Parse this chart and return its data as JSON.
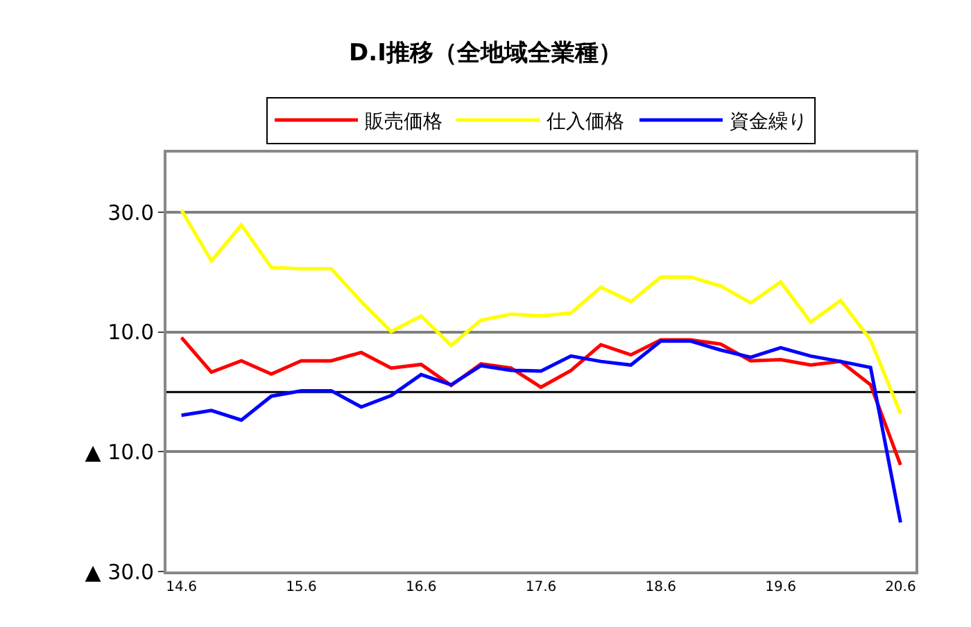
{
  "chart_data": {
    "type": "line",
    "title": "D.I推移（全地域全業種）",
    "categories": [
      "14.6",
      null,
      null,
      null,
      "15.6",
      null,
      null,
      null,
      "16.6",
      null,
      null,
      null,
      "17.6",
      null,
      null,
      null,
      "18.6",
      null,
      null,
      null,
      "19.6",
      null,
      null,
      null,
      "20.6"
    ],
    "series": [
      {
        "name": "販売価格",
        "color": "#ff0000",
        "values": [
          9.1,
          3.3,
          5.2,
          3.0,
          5.2,
          5.2,
          6.6,
          4.0,
          4.6,
          1.1,
          4.7,
          4.0,
          0.8,
          3.6,
          7.9,
          6.2,
          8.7,
          8.7,
          8.0,
          5.2,
          5.4,
          4.5,
          5.1,
          1.2,
          -12.2
        ]
      },
      {
        "name": "仕入価格",
        "color": "#ffff00",
        "values": [
          30.4,
          21.9,
          27.9,
          20.8,
          20.6,
          20.6,
          15.1,
          10.1,
          12.7,
          7.8,
          12.0,
          13.0,
          12.7,
          13.2,
          17.5,
          15.1,
          19.2,
          19.2,
          17.7,
          14.9,
          18.4,
          11.7,
          15.3,
          8.7,
          -3.6
        ]
      },
      {
        "name": "資金繰り",
        "color": "#0000ff",
        "values": [
          -3.9,
          -3.1,
          -4.7,
          -0.7,
          0.2,
          0.2,
          -2.5,
          -0.6,
          2.9,
          1.2,
          4.4,
          3.6,
          3.5,
          6.0,
          5.1,
          4.5,
          8.5,
          8.5,
          7.0,
          5.8,
          7.4,
          6.0,
          5.1,
          4.1,
          -21.8
        ]
      }
    ],
    "ylim": [
      -30,
      40
    ],
    "yticks": [
      {
        "value": 30,
        "label": "30.0"
      },
      {
        "value": 10,
        "label": "10.0"
      },
      {
        "value": -10,
        "label": "▲ 10.0"
      },
      {
        "value": -30,
        "label": "▲ 30.0"
      }
    ],
    "ref_lines": [
      {
        "axis": "y",
        "value": 0,
        "color": "#000000"
      }
    ],
    "grid": "y",
    "legend": "top",
    "marker": "none",
    "line_style": "solid"
  }
}
